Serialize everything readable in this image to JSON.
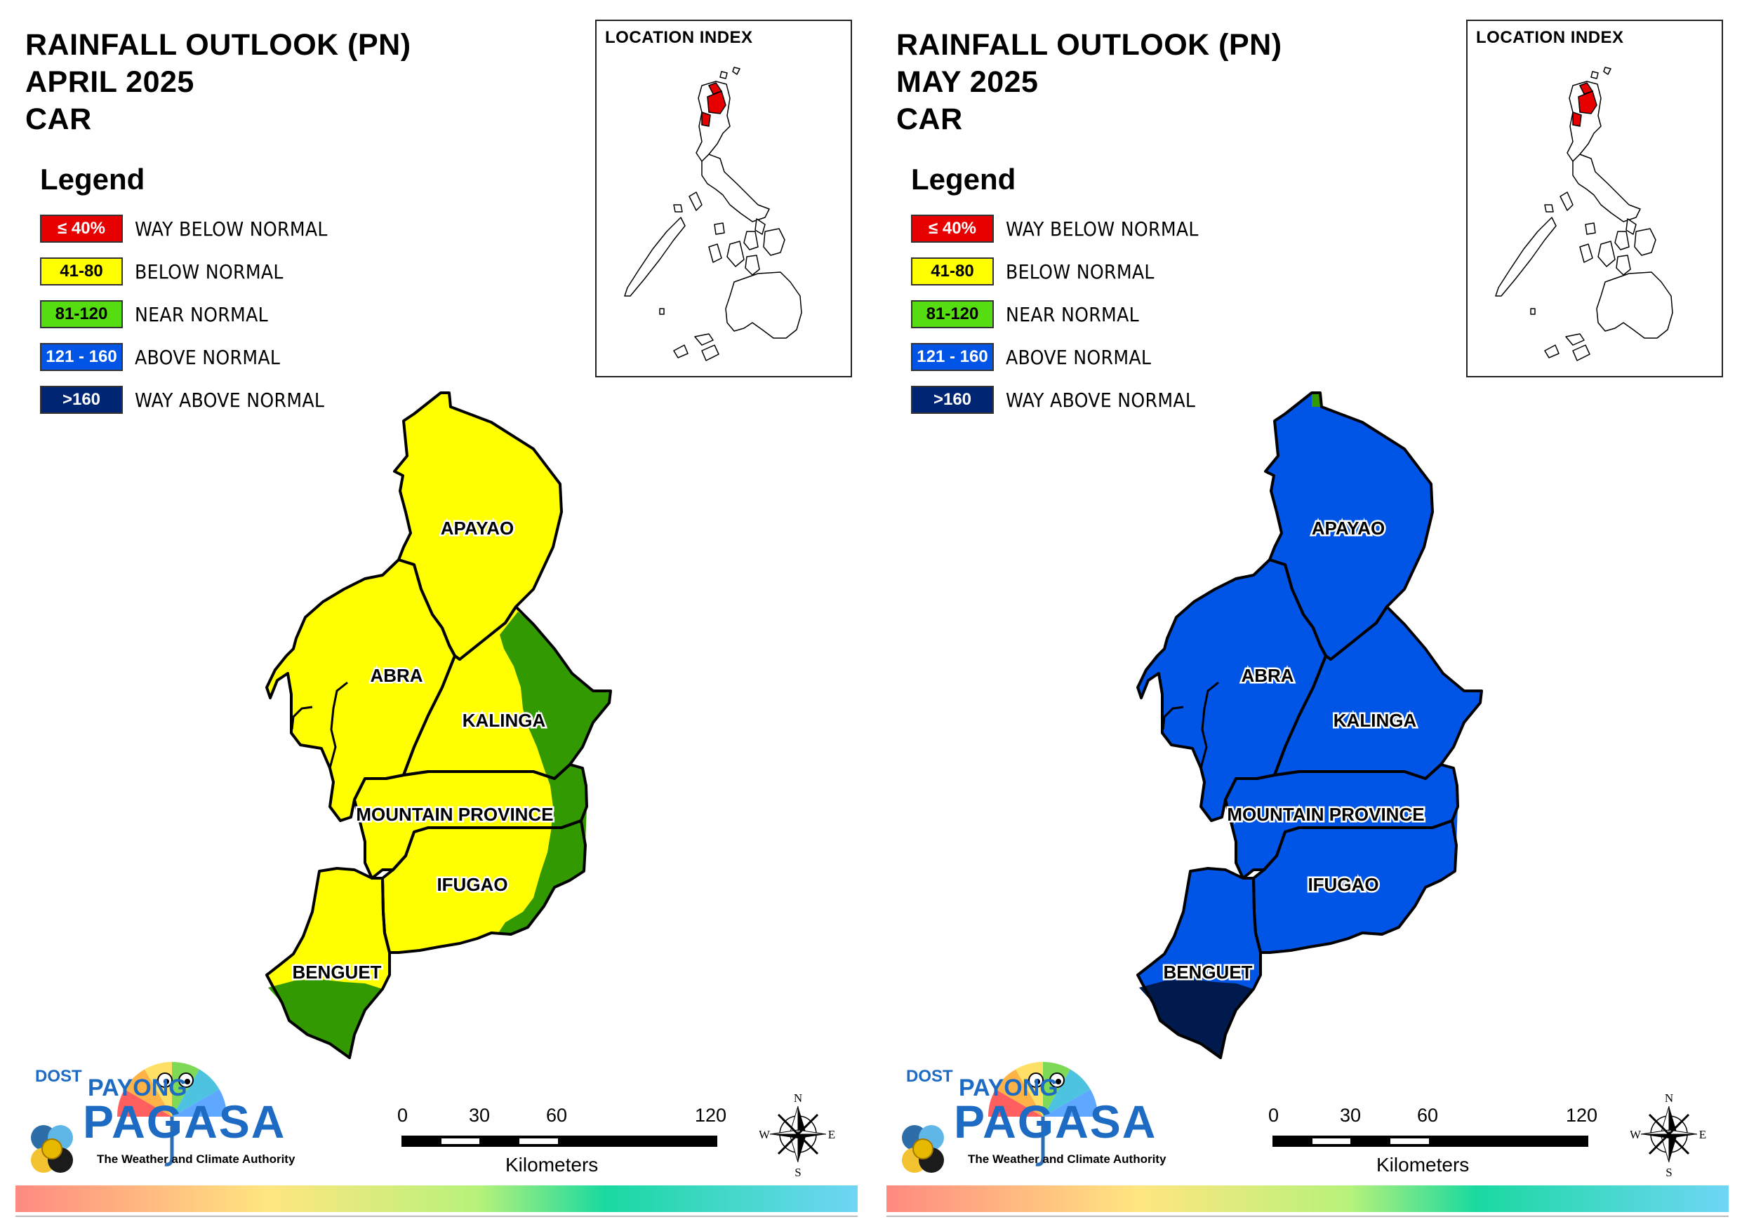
{
  "panels": [
    {
      "title_line1": "RAINFALL OUTLOOK (PN)",
      "title_line2": "APRIL 2025",
      "title_line3": "CAR",
      "fills": {
        "APAYAO": "#ffff00",
        "ABRA": "#ffff00",
        "KALINGA": "#ffff00",
        "MOUNTAIN PROVINCE": "#ffff00",
        "IFUGAO": "#ffff00",
        "BENGUET": "#ffff00",
        "east_patch": "#339900",
        "benguet_south": "#339900",
        "apayao_tip": "#ffff00"
      }
    },
    {
      "title_line1": "RAINFALL OUTLOOK (PN)",
      "title_line2": "MAY 2025",
      "title_line3": "CAR",
      "fills": {
        "APAYAO": "#0055e6",
        "ABRA": "#0055e6",
        "KALINGA": "#0055e6",
        "MOUNTAIN PROVINCE": "#0055e6",
        "IFUGAO": "#0055e6",
        "BENGUET": "#0055e6",
        "east_patch": "#0055e6",
        "benguet_south": "#001a4d",
        "apayao_tip": "#339900"
      }
    }
  ],
  "legend": {
    "title": "Legend",
    "items": [
      {
        "code": "≤ 40%",
        "label": "WAY BELOW NORMAL",
        "color": "#e60000",
        "text_color": "#ffffff"
      },
      {
        "code": "41-80",
        "label": "BELOW NORMAL",
        "color": "#ffff00",
        "text_color": "#000000"
      },
      {
        "code": "81-120",
        "label": "NEAR NORMAL",
        "color": "#55dd11",
        "text_color": "#000000"
      },
      {
        "code": "121 - 160",
        "label": "ABOVE NORMAL",
        "color": "#0055e6",
        "text_color": "#ffffff"
      },
      {
        "code": ">160",
        "label": "WAY ABOVE NORMAL",
        "color": "#002673",
        "text_color": "#ffffff"
      }
    ]
  },
  "inset": {
    "title": "LOCATION INDEX",
    "highlight_color": "#e60000"
  },
  "provinces": {
    "apayao": "APAYAO",
    "abra": "ABRA",
    "kalinga": "KALINGA",
    "mountain_province": "MOUNTAIN PROVINCE",
    "ifugao": "IFUGAO",
    "benguet": "BENGUET"
  },
  "scale": {
    "ticks": [
      "0",
      "30",
      "60",
      "120"
    ],
    "unit": "Kilometers"
  },
  "compass": {
    "n": "N",
    "s": "S",
    "e": "E",
    "w": "W"
  },
  "logo": {
    "agency": "DOST",
    "line1": "PAYONG",
    "line2": "PAGASA",
    "tagline": "The Weather and Climate Authority"
  }
}
